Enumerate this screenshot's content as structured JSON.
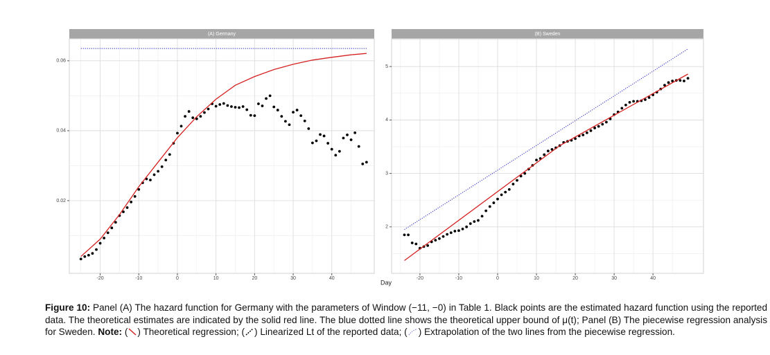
{
  "x_label": "Day",
  "chart_data": [
    {
      "type": "scatter",
      "title": "(A) Germany",
      "xlim": [
        -28,
        51
      ],
      "xticks": [
        -20,
        -10,
        0,
        10,
        20,
        30,
        40
      ],
      "ylim": [
        -0.0008,
        0.0663
      ],
      "yticks": [
        0.02,
        0.04,
        0.06
      ],
      "grid": true,
      "series": [
        {
          "kind": "points",
          "color": "#000000",
          "x": [
            -25,
            -24,
            -23,
            -22,
            -21,
            -20,
            -19,
            -18,
            -17,
            -16,
            -15,
            -14,
            -13,
            -12,
            -11,
            -10,
            -9,
            -8,
            -7,
            -6,
            -5,
            -4,
            -3,
            -2,
            -1,
            0,
            1,
            2,
            3,
            4,
            5,
            6,
            7,
            8,
            9,
            10,
            11,
            12,
            13,
            14,
            15,
            16,
            17,
            18,
            19,
            20,
            21,
            22,
            23,
            24,
            25,
            26,
            27,
            28,
            29,
            30,
            31,
            32,
            33,
            34,
            35,
            36,
            37,
            38,
            39,
            40,
            41,
            42,
            43,
            44,
            45,
            46,
            47,
            48,
            49
          ],
          "values": [
            0.0033,
            0.004,
            0.0044,
            0.0049,
            0.006,
            0.0078,
            0.0093,
            0.0108,
            0.0122,
            0.0138,
            0.0157,
            0.0168,
            0.018,
            0.0196,
            0.0212,
            0.0232,
            0.0251,
            0.0262,
            0.0259,
            0.0274,
            0.0284,
            0.0297,
            0.0316,
            0.0332,
            0.0364,
            0.0393,
            0.0413,
            0.0441,
            0.0455,
            0.0437,
            0.0434,
            0.0441,
            0.0452,
            0.0462,
            0.0477,
            0.047,
            0.0475,
            0.0478,
            0.0472,
            0.0469,
            0.0467,
            0.0466,
            0.0469,
            0.046,
            0.0444,
            0.0443,
            0.0477,
            0.0471,
            0.0492,
            0.05,
            0.0468,
            0.0459,
            0.0441,
            0.0427,
            0.0417,
            0.0453,
            0.0459,
            0.0443,
            0.0428,
            0.0406,
            0.0365,
            0.0371,
            0.0389,
            0.0385,
            0.0364,
            0.0347,
            0.033,
            0.0341,
            0.0379,
            0.0388,
            0.0374,
            0.0394,
            0.0355,
            0.0305,
            0.031
          ]
        },
        {
          "kind": "line",
          "color": "#d42020",
          "x": [
            -25,
            -20,
            -15,
            -10,
            -5,
            0,
            5,
            10,
            15,
            20,
            25,
            30,
            35,
            40,
            45,
            49
          ],
          "values": [
            0.004,
            0.009,
            0.016,
            0.024,
            0.031,
            0.038,
            0.044,
            0.049,
            0.053,
            0.0555,
            0.0575,
            0.059,
            0.0602,
            0.061,
            0.0617,
            0.0621
          ]
        },
        {
          "kind": "dotted",
          "color": "#3030c0",
          "x": [
            -25,
            49
          ],
          "values": [
            0.0635,
            0.0635
          ]
        }
      ]
    },
    {
      "type": "scatter",
      "title": "(B) Sweden",
      "xlim": [
        -27.3,
        53
      ],
      "xticks": [
        -20,
        -10,
        0,
        10,
        20,
        30,
        40
      ],
      "ylim": [
        1.13,
        5.52
      ],
      "yticks": [
        2,
        3,
        4,
        5
      ],
      "grid": true,
      "series": [
        {
          "kind": "points",
          "color": "#000000",
          "x": [
            -24,
            -23,
            -22,
            -21,
            -20,
            -19,
            -18,
            -17,
            -16,
            -15,
            -14,
            -13,
            -12,
            -11,
            -10,
            -9,
            -8,
            -7,
            -6,
            -5,
            -4,
            -3,
            -2,
            -1,
            0,
            1,
            2,
            3,
            4,
            5,
            6,
            7,
            8,
            9,
            10,
            11,
            12,
            13,
            14,
            15,
            16,
            17,
            18,
            19,
            20,
            21,
            22,
            23,
            24,
            25,
            26,
            27,
            28,
            29,
            30,
            31,
            32,
            33,
            34,
            35,
            36,
            37,
            38,
            39,
            40,
            41,
            42,
            43,
            44,
            45,
            46,
            47,
            48,
            49
          ],
          "values": [
            1.85,
            1.85,
            1.7,
            1.68,
            1.6,
            1.63,
            1.65,
            1.72,
            1.75,
            1.78,
            1.82,
            1.86,
            1.89,
            1.92,
            1.93,
            1.96,
            2.0,
            2.06,
            2.1,
            2.12,
            2.2,
            2.3,
            2.38,
            2.45,
            2.52,
            2.6,
            2.65,
            2.7,
            2.8,
            2.87,
            2.95,
            3.0,
            3.08,
            3.15,
            3.25,
            3.28,
            3.35,
            3.42,
            3.45,
            3.48,
            3.52,
            3.58,
            3.6,
            3.62,
            3.65,
            3.7,
            3.72,
            3.76,
            3.8,
            3.85,
            3.88,
            3.92,
            3.96,
            4.02,
            4.1,
            4.15,
            4.22,
            4.28,
            4.33,
            4.35,
            4.35,
            4.36,
            4.38,
            4.42,
            4.47,
            4.52,
            4.58,
            4.65,
            4.7,
            4.73,
            4.74,
            4.74,
            4.73,
            4.78
          ]
        },
        {
          "kind": "line",
          "color": "#d42020",
          "x": [
            -24,
            16,
            49
          ],
          "values": [
            1.37,
            3.52,
            4.86
          ]
        },
        {
          "kind": "dotted",
          "color": "#3030c0",
          "x": [
            -24,
            49
          ],
          "values": [
            1.95,
            5.33
          ]
        }
      ]
    }
  ],
  "caption": {
    "label": "Figure 10:",
    "text": " Panel (A) The hazard function for Germany with the parameters of Window (−11, −0) in Table 1. Black points are the estimated hazard function using the reported data. The theoretical estimates are indicated by the solid red line. The blue dotted line shows the theoretical upper  bound of μ(t);  Panel (B)  The   piecewise regression analysis for Sweden. ",
    "note_label": "Note:",
    "note": [
      " (",
      ") Theoretical regression; (",
      ") Linearized Lt of the reported data; (",
      ") Extrapolation  of the two lines from  the piecewise regression."
    ]
  }
}
